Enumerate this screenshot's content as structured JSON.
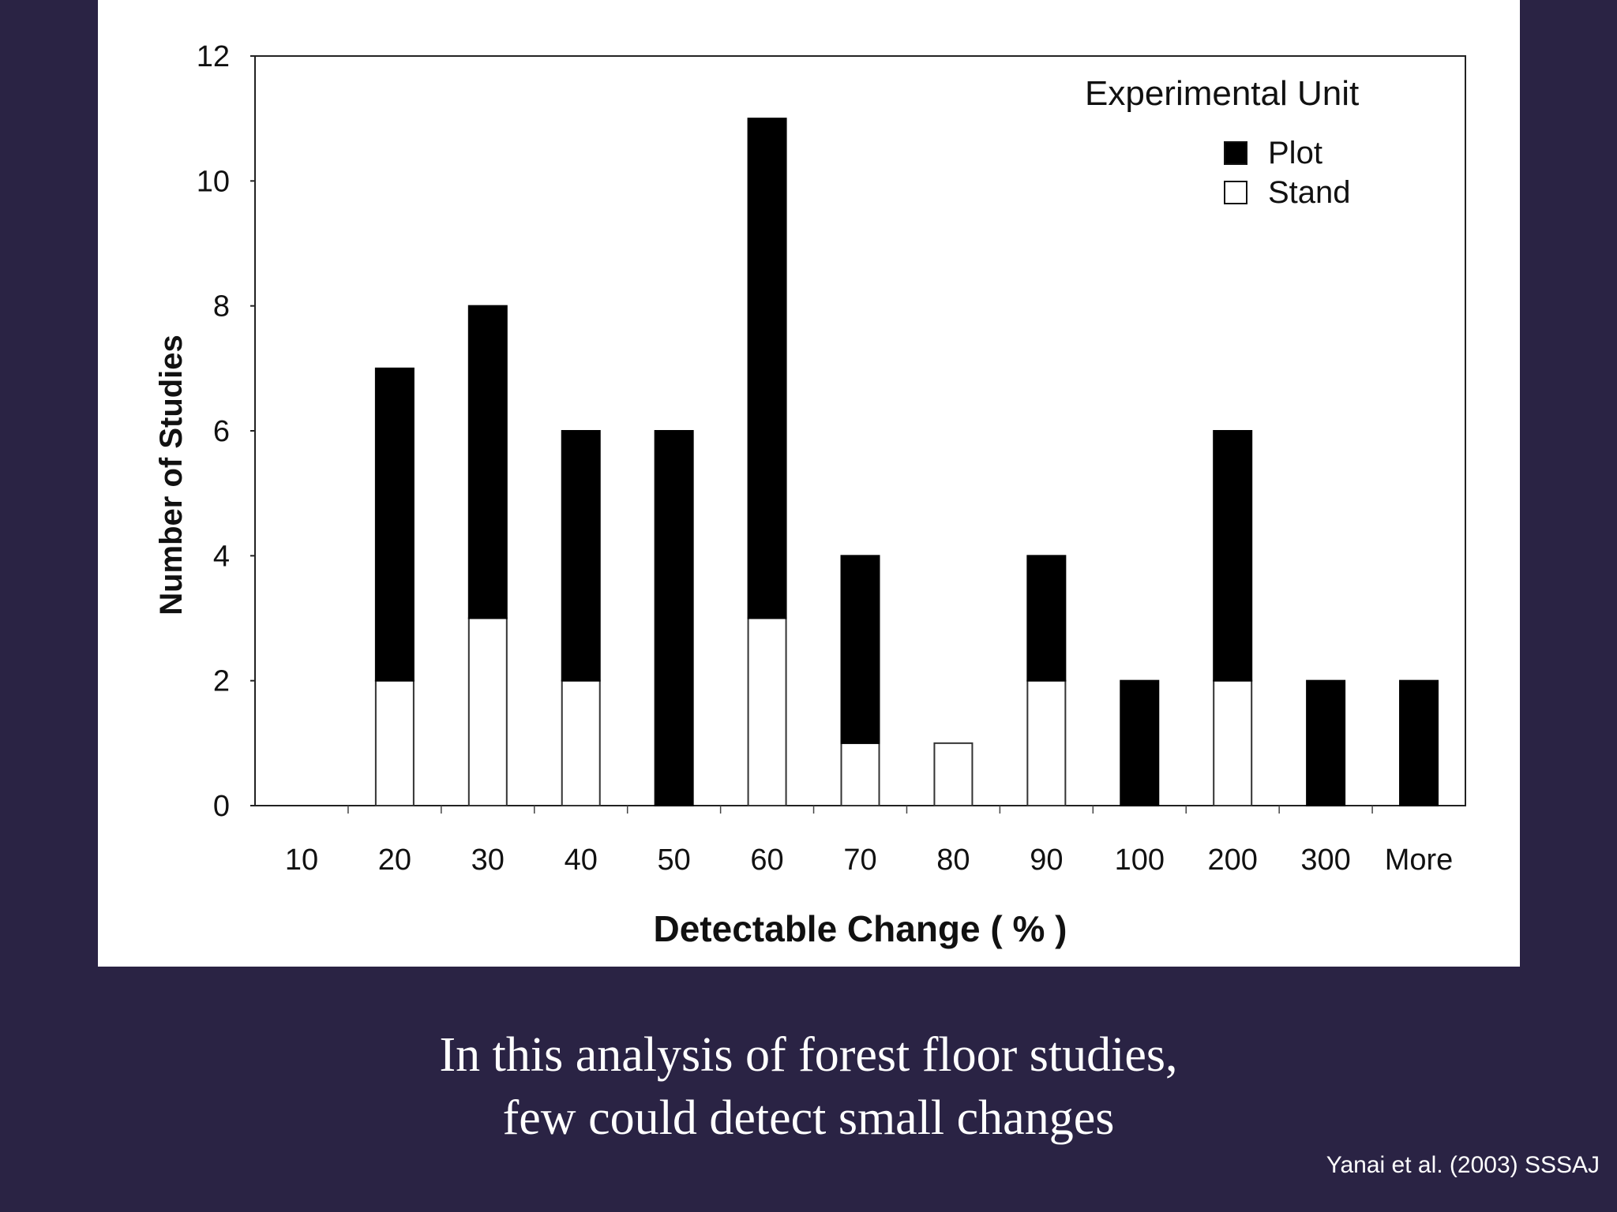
{
  "slide": {
    "caption_line1": "In this analysis of forest floor studies,",
    "caption_line2": "few could detect small changes",
    "citation": "Yanai et al. (2003) SSSAJ",
    "background_color": "#2a2344",
    "text_color": "#ffffff"
  },
  "chart_data": {
    "type": "bar",
    "stacked": true,
    "categories": [
      "10",
      "20",
      "30",
      "40",
      "50",
      "60",
      "70",
      "80",
      "90",
      "100",
      "200",
      "300",
      "More"
    ],
    "series": [
      {
        "name": "Stand",
        "color": "#ffffff",
        "values": [
          0,
          2,
          3,
          2,
          0,
          3,
          1,
          1,
          2,
          0,
          2,
          0,
          0
        ]
      },
      {
        "name": "Plot",
        "color": "#000000",
        "values": [
          0,
          5,
          5,
          4,
          6,
          8,
          3,
          0,
          2,
          2,
          4,
          2,
          2
        ]
      }
    ],
    "title": "",
    "xlabel": "Detectable Change ( % )",
    "ylabel": "Number of Studies",
    "ylim": [
      0,
      12
    ],
    "yticks": [
      "0",
      "2",
      "4",
      "6",
      "8",
      "10",
      "12"
    ],
    "legend": {
      "title": "Experimental  Unit",
      "position": "top-right",
      "entries": [
        "Plot",
        "Stand"
      ]
    },
    "grid": false
  }
}
